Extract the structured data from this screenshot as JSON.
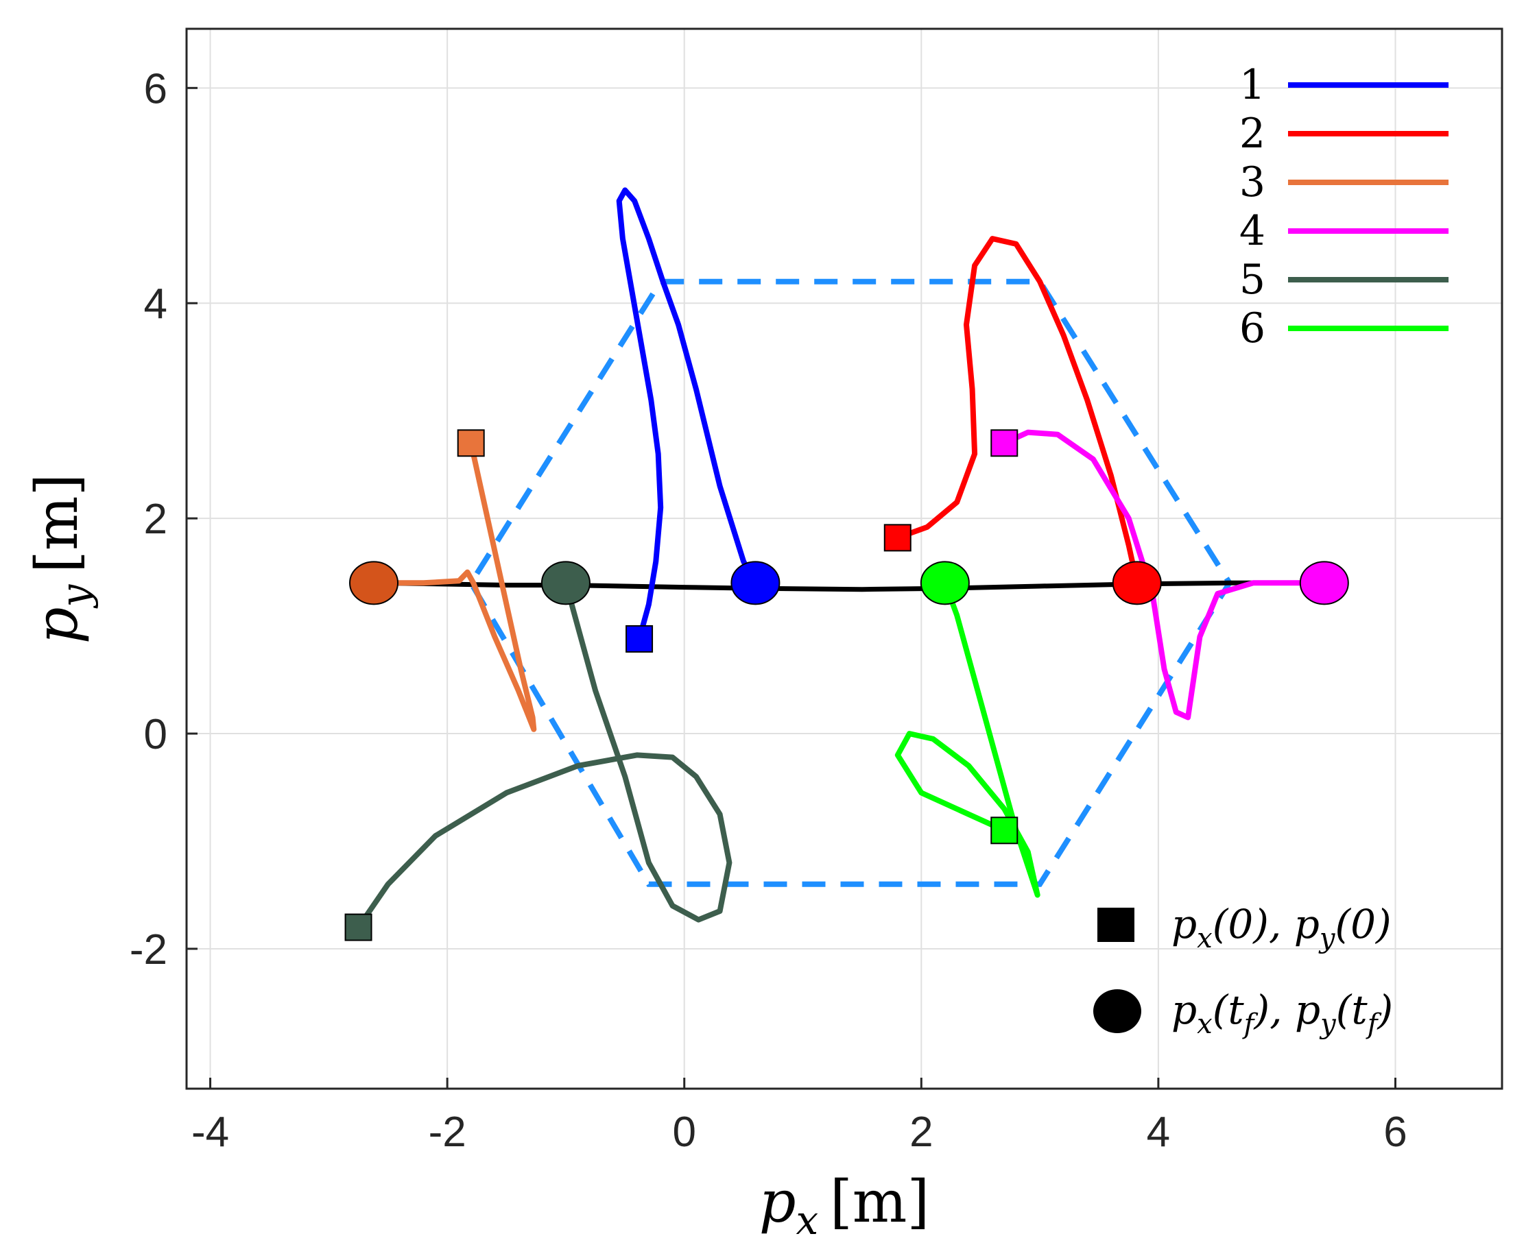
{
  "chart_data": {
    "type": "line",
    "xlabel": "p_x [m]",
    "ylabel": "p_y [m]",
    "xlabel_parts": {
      "var": "p",
      "sub": "x",
      "unit": "[m]"
    },
    "ylabel_parts": {
      "var": "p",
      "sub": "y",
      "unit": "[m]"
    },
    "xlim": [
      -4.2,
      6.9
    ],
    "ylim": [
      -3.3,
      6.55
    ],
    "xticks": [
      -4,
      -2,
      0,
      2,
      4,
      6
    ],
    "yticks": [
      -2,
      0,
      2,
      4,
      6
    ],
    "xtick_labels": [
      "-4",
      "-2",
      "0",
      "2",
      "4",
      "6"
    ],
    "ytick_labels": [
      "-2",
      "0",
      "2",
      "4",
      "6"
    ],
    "grid": true,
    "legend_position": "top-right",
    "series": [
      {
        "name": "1",
        "color": "#0000ff",
        "points": [
          [
            -0.38,
            0.88
          ],
          [
            -0.3,
            1.2
          ],
          [
            -0.24,
            1.6
          ],
          [
            -0.2,
            2.1
          ],
          [
            -0.22,
            2.6
          ],
          [
            -0.28,
            3.1
          ],
          [
            -0.36,
            3.6
          ],
          [
            -0.44,
            4.1
          ],
          [
            -0.52,
            4.6
          ],
          [
            -0.55,
            4.95
          ],
          [
            -0.5,
            5.05
          ],
          [
            -0.42,
            4.95
          ],
          [
            -0.3,
            4.6
          ],
          [
            -0.18,
            4.2
          ],
          [
            -0.05,
            3.8
          ],
          [
            0.1,
            3.2
          ],
          [
            0.3,
            2.3
          ],
          [
            0.5,
            1.6
          ],
          [
            0.6,
            1.4
          ]
        ]
      },
      {
        "name": "2",
        "color": "#ff0000",
        "points": [
          [
            1.8,
            1.82
          ],
          [
            2.05,
            1.92
          ],
          [
            2.3,
            2.15
          ],
          [
            2.45,
            2.6
          ],
          [
            2.43,
            3.2
          ],
          [
            2.38,
            3.8
          ],
          [
            2.45,
            4.35
          ],
          [
            2.6,
            4.6
          ],
          [
            2.8,
            4.55
          ],
          [
            3.0,
            4.2
          ],
          [
            3.2,
            3.7
          ],
          [
            3.4,
            3.1
          ],
          [
            3.6,
            2.4
          ],
          [
            3.75,
            1.75
          ],
          [
            3.82,
            1.4
          ]
        ]
      },
      {
        "name": "3",
        "color": "#e8743b",
        "points": [
          [
            -1.8,
            2.7
          ],
          [
            -1.72,
            2.3
          ],
          [
            -1.62,
            1.8
          ],
          [
            -1.5,
            1.2
          ],
          [
            -1.38,
            0.6
          ],
          [
            -1.28,
            0.15
          ],
          [
            -1.27,
            0.04
          ],
          [
            -1.4,
            0.4
          ],
          [
            -1.6,
            0.9
          ],
          [
            -1.78,
            1.4
          ],
          [
            -1.83,
            1.5
          ],
          [
            -1.9,
            1.42
          ],
          [
            -2.2,
            1.4
          ],
          [
            -2.62,
            1.4
          ]
        ]
      },
      {
        "name": "4",
        "color": "#ff00ff",
        "points": [
          [
            2.7,
            2.7
          ],
          [
            2.9,
            2.8
          ],
          [
            3.15,
            2.78
          ],
          [
            3.45,
            2.55
          ],
          [
            3.75,
            2.0
          ],
          [
            3.95,
            1.3
          ],
          [
            4.05,
            0.6
          ],
          [
            4.15,
            0.2
          ],
          [
            4.25,
            0.15
          ],
          [
            4.35,
            0.9
          ],
          [
            4.5,
            1.3
          ],
          [
            4.8,
            1.4
          ],
          [
            5.4,
            1.4
          ]
        ]
      },
      {
        "name": "5",
        "color": "#3d5e4d",
        "points": [
          [
            -2.75,
            -1.8
          ],
          [
            -2.5,
            -1.4
          ],
          [
            -2.1,
            -0.95
          ],
          [
            -1.5,
            -0.55
          ],
          [
            -0.9,
            -0.3
          ],
          [
            -0.4,
            -0.2
          ],
          [
            -0.1,
            -0.22
          ],
          [
            0.1,
            -0.4
          ],
          [
            0.3,
            -0.75
          ],
          [
            0.38,
            -1.2
          ],
          [
            0.3,
            -1.65
          ],
          [
            0.12,
            -1.73
          ],
          [
            -0.1,
            -1.6
          ],
          [
            -0.3,
            -1.2
          ],
          [
            -0.5,
            -0.4
          ],
          [
            -0.75,
            0.4
          ],
          [
            -0.95,
            1.2
          ],
          [
            -1.0,
            1.4
          ]
        ]
      },
      {
        "name": "6",
        "color": "#00ff00",
        "points": [
          [
            2.7,
            -0.9
          ],
          [
            2.4,
            -0.75
          ],
          [
            2.0,
            -0.55
          ],
          [
            1.8,
            -0.2
          ],
          [
            1.9,
            0.0
          ],
          [
            2.1,
            -0.05
          ],
          [
            2.4,
            -0.3
          ],
          [
            2.7,
            -0.7
          ],
          [
            2.9,
            -1.1
          ],
          [
            2.98,
            -1.5
          ],
          [
            2.8,
            -0.9
          ],
          [
            2.55,
            0.1
          ],
          [
            2.3,
            1.1
          ],
          [
            2.2,
            1.4
          ]
        ]
      }
    ],
    "formation_line": {
      "color": "#000000",
      "points": [
        [
          -2.62,
          1.4
        ],
        [
          -1.5,
          1.38
        ],
        [
          -1.0,
          1.38
        ],
        [
          0.0,
          1.36
        ],
        [
          0.6,
          1.35
        ],
        [
          1.5,
          1.34
        ],
        [
          2.2,
          1.35
        ],
        [
          3.0,
          1.37
        ],
        [
          3.8,
          1.39
        ],
        [
          4.6,
          1.4
        ],
        [
          5.4,
          1.4
        ]
      ]
    },
    "hexagon": {
      "color": "#1e8fff",
      "points": [
        [
          -0.2,
          4.2
        ],
        [
          3.0,
          4.2
        ],
        [
          4.6,
          1.4
        ],
        [
          3.0,
          -1.4
        ],
        [
          -0.3,
          -1.4
        ],
        [
          -1.8,
          1.4
        ],
        [
          -0.2,
          4.2
        ]
      ]
    },
    "initial_positions": [
      {
        "series": "1",
        "x": -0.38,
        "y": 0.88
      },
      {
        "series": "2",
        "x": 1.8,
        "y": 1.82
      },
      {
        "series": "3",
        "x": -1.8,
        "y": 2.7
      },
      {
        "series": "4",
        "x": 2.7,
        "y": 2.7
      },
      {
        "series": "5",
        "x": -2.75,
        "y": -1.8
      },
      {
        "series": "6",
        "x": 2.7,
        "y": -0.9
      }
    ],
    "final_positions": [
      {
        "series": "3",
        "x": -2.62,
        "y": 1.4
      },
      {
        "series": "5",
        "x": -1.0,
        "y": 1.4
      },
      {
        "series": "1",
        "x": 0.6,
        "y": 1.4
      },
      {
        "series": "6",
        "x": 2.2,
        "y": 1.4
      },
      {
        "series": "2",
        "x": 3.82,
        "y": 1.4
      },
      {
        "series": "4",
        "x": 5.4,
        "y": 1.4
      }
    ],
    "final_marker_colors": {
      "1": "#0000ff",
      "2": "#ff0000",
      "3": "#d4541b",
      "4": "#ff00ff",
      "5": "#3d5e4d",
      "6": "#00ff00"
    },
    "marker_legend": [
      {
        "shape": "square",
        "label": "p_x(0), p_y(0)"
      },
      {
        "shape": "circle",
        "label": "p_x(t_f), p_y(t_f)"
      }
    ]
  }
}
